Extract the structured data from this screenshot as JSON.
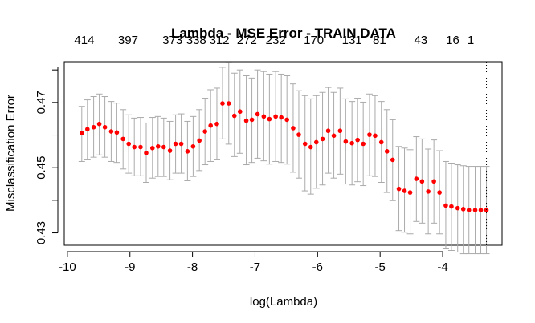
{
  "chart_data": {
    "type": "scatter",
    "title": "Lambda - MSE Error - TRAIN DATA",
    "xlabel": "log(Lambda)",
    "ylabel": "Misclassification Error",
    "xlim": [
      -10.05,
      -3.05
    ],
    "ylim": [
      0.4262,
      0.4825
    ],
    "x_ticks": [
      -10,
      -9,
      -8,
      -7,
      -6,
      -5,
      -4
    ],
    "x_tick_labels": [
      "-10",
      "-9",
      "-8",
      "-7",
      "-6",
      "-5",
      "-4"
    ],
    "y_ticks": [
      0.43,
      0.45,
      0.47
    ],
    "y_tick_labels": [
      "0.43",
      "0.45",
      "0.47"
    ],
    "top_axis": {
      "positions": [
        -9.73,
        -9.03,
        -8.32,
        -7.94,
        -7.57,
        -7.13,
        -6.67,
        -6.06,
        -5.45,
        -5.01,
        -4.35,
        -3.84,
        -3.55
      ],
      "labels": [
        "414",
        "397",
        "373",
        "338",
        "312",
        "272",
        "232",
        "170",
        "131",
        "81",
        "43",
        "16",
        "1"
      ]
    },
    "reference_line_x": -3.3,
    "grid": false,
    "point_color": "#ff0000",
    "errorbar_color": "#aaaaaa",
    "x": [
      -9.77,
      -9.68,
      -9.58,
      -9.49,
      -9.4,
      -9.3,
      -9.21,
      -9.11,
      -9.02,
      -8.93,
      -8.83,
      -8.74,
      -8.64,
      -8.55,
      -8.46,
      -8.36,
      -8.27,
      -8.18,
      -8.08,
      -7.99,
      -7.89,
      -7.8,
      -7.71,
      -7.61,
      -7.52,
      -7.42,
      -7.33,
      -7.24,
      -7.14,
      -7.05,
      -6.96,
      -6.86,
      -6.77,
      -6.67,
      -6.58,
      -6.49,
      -6.39,
      -6.3,
      -6.2,
      -6.11,
      -6.02,
      -5.92,
      -5.83,
      -5.74,
      -5.64,
      -5.55,
      -5.45,
      -5.36,
      -5.27,
      -5.17,
      -5.08,
      -4.98,
      -4.89,
      -4.8,
      -4.7,
      -4.61,
      -4.52,
      -4.42,
      -4.33,
      -4.23,
      -4.14,
      -4.05,
      -3.95,
      -3.86,
      -3.76,
      -3.67,
      -3.58,
      -3.48,
      -3.39,
      -3.3
    ],
    "values": [
      0.4606,
      0.4618,
      0.4624,
      0.4634,
      0.4624,
      0.4611,
      0.4608,
      0.4588,
      0.4573,
      0.4563,
      0.4563,
      0.4545,
      0.456,
      0.4565,
      0.4563,
      0.4552,
      0.4573,
      0.4573,
      0.455,
      0.4565,
      0.4583,
      0.4611,
      0.4629,
      0.4634,
      0.4697,
      0.4697,
      0.4659,
      0.4672,
      0.4644,
      0.4647,
      0.4664,
      0.4657,
      0.4649,
      0.4657,
      0.4654,
      0.4647,
      0.4621,
      0.4601,
      0.4573,
      0.4563,
      0.4578,
      0.4588,
      0.4613,
      0.4598,
      0.4613,
      0.458,
      0.4575,
      0.4585,
      0.4573,
      0.4601,
      0.4598,
      0.4578,
      0.455,
      0.4524,
      0.4435,
      0.4429,
      0.4424,
      0.4466,
      0.4458,
      0.4427,
      0.4458,
      0.4424,
      0.4384,
      0.4381,
      0.4376,
      0.4373,
      0.437,
      0.437,
      0.437,
      0.437
    ],
    "error_upper": [
      0.4688,
      0.4708,
      0.4718,
      0.4726,
      0.4718,
      0.4703,
      0.4698,
      0.4678,
      0.4662,
      0.4652,
      0.4654,
      0.4637,
      0.4654,
      0.4657,
      0.4652,
      0.4642,
      0.4662,
      0.4665,
      0.4642,
      0.4657,
      0.4678,
      0.4713,
      0.4739,
      0.4744,
      0.4808,
      0.4823,
      0.479,
      0.48,
      0.4782,
      0.4775,
      0.48,
      0.4795,
      0.4787,
      0.4795,
      0.4787,
      0.4782,
      0.4757,
      0.4736,
      0.4721,
      0.4711,
      0.4721,
      0.4731,
      0.4746,
      0.4731,
      0.4744,
      0.4711,
      0.4703,
      0.4713,
      0.4701,
      0.4726,
      0.4721,
      0.4703,
      0.4678,
      0.4647,
      0.4565,
      0.456,
      0.4555,
      0.4595,
      0.4588,
      0.4557,
      0.4585,
      0.4552,
      0.4519,
      0.4514,
      0.4509,
      0.4506,
      0.4504,
      0.4504,
      0.4504,
      0.4504
    ],
    "error_lower": [
      0.4519,
      0.4524,
      0.4532,
      0.4539,
      0.4532,
      0.4519,
      0.4516,
      0.4496,
      0.4483,
      0.4475,
      0.4475,
      0.4455,
      0.4468,
      0.4473,
      0.4473,
      0.4463,
      0.4483,
      0.4483,
      0.446,
      0.4473,
      0.4491,
      0.4509,
      0.4519,
      0.4524,
      0.4588,
      0.4572,
      0.4534,
      0.4544,
      0.4509,
      0.4516,
      0.4529,
      0.4521,
      0.4511,
      0.4519,
      0.4516,
      0.4511,
      0.4486,
      0.4468,
      0.4429,
      0.4419,
      0.4437,
      0.4447,
      0.4483,
      0.4468,
      0.448,
      0.445,
      0.4447,
      0.4457,
      0.4445,
      0.4475,
      0.4473,
      0.4455,
      0.4424,
      0.4399,
      0.4307,
      0.4302,
      0.4297,
      0.4335,
      0.433,
      0.4297,
      0.433,
      0.4297,
      0.4251,
      0.4246,
      0.4241,
      0.4236,
      0.4236,
      0.4236,
      0.4236,
      0.4236
    ]
  }
}
